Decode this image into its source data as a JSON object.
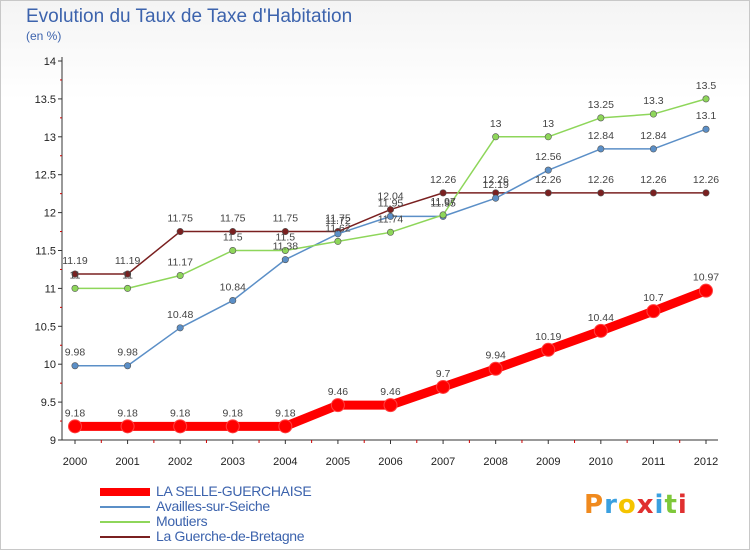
{
  "chart_data": {
    "type": "line",
    "title": "Evolution du Taux de Taxe d'Habitation",
    "subtitle": "(en %)",
    "categories": [
      "2000",
      "2001",
      "2002",
      "2003",
      "2004",
      "2005",
      "2006",
      "2007",
      "2008",
      "2009",
      "2010",
      "2011",
      "2012"
    ],
    "ylim": [
      9,
      14
    ],
    "yticks": [
      "9",
      "9.5",
      "10",
      "10.5",
      "11",
      "11.5",
      "12",
      "12.5",
      "13",
      "13.5",
      "14"
    ],
    "grid": false,
    "legend_placement": "bottom-left",
    "series": [
      {
        "name": "LA SELLE-GUERCHAISE",
        "color": "#ff0000",
        "values": [
          9.18,
          9.18,
          9.18,
          9.18,
          9.18,
          9.46,
          9.46,
          9.7,
          9.94,
          10.19,
          10.44,
          10.7,
          10.97
        ],
        "labels": [
          "9.18",
          "9.18",
          "9.18",
          "9.18",
          "9.18",
          "9.46",
          "9.46",
          "9.7",
          "9.94",
          "10.19",
          "10.44",
          "10.7",
          "10.97"
        ]
      },
      {
        "name": "Availles-sur-Seiche",
        "color": "#5b8fc7",
        "values": [
          9.98,
          9.98,
          10.48,
          10.84,
          11.38,
          11.72,
          11.95,
          11.95,
          12.19,
          12.56,
          12.84,
          12.84,
          13.1
        ],
        "labels": [
          "9.98",
          "9.98",
          "10.48",
          "10.84",
          "11.38",
          "11.72",
          "11.95",
          "11.95",
          "12.19",
          "12.56",
          "12.84",
          "12.84",
          "13.1"
        ]
      },
      {
        "name": "Moutiers",
        "color": "#8ed65a",
        "values": [
          11,
          11,
          11.17,
          11.5,
          11.5,
          11.62,
          11.74,
          11.97,
          13,
          13,
          13.25,
          13.3,
          13.5
        ],
        "labels": [
          "11",
          "11",
          "11.17",
          "11.5",
          "11.5",
          "11.62",
          "11.74",
          "11.97",
          "13",
          "13",
          "13.25",
          "13.3",
          "13.5"
        ]
      },
      {
        "name": "La Guerche-de-Bretagne",
        "color": "#7a2020",
        "values": [
          11.19,
          11.19,
          11.75,
          11.75,
          11.75,
          11.75,
          12.04,
          12.26,
          12.26,
          12.26,
          12.26,
          12.26,
          12.26
        ],
        "labels": [
          "11.19",
          "11.19",
          "11.75",
          "11.75",
          "11.75",
          "11.75",
          "12.04",
          "12.26",
          "12.26",
          "12.26",
          "12.26",
          "12.26",
          "12.26"
        ]
      }
    ]
  },
  "logo": {
    "text": "Proxiti"
  },
  "colors": {
    "title": "#3c63ad",
    "axis": "#333333"
  }
}
